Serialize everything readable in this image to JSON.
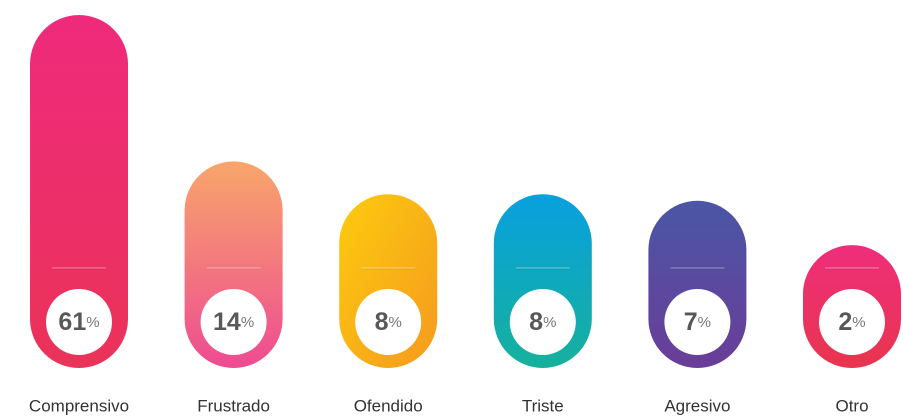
{
  "chart_data": {
    "type": "bar",
    "categories": [
      "Comprensivo",
      "Frustrado",
      "Ofendido",
      "Triste",
      "Agresivo",
      "Otro"
    ],
    "values": [
      61,
      14,
      8,
      8,
      7,
      2
    ],
    "value_labels": [
      "61%",
      "14%",
      "8%",
      "8%",
      "7%",
      "2%"
    ],
    "colors": [
      [
        "#ef2a7c",
        "#ea3358"
      ],
      [
        "#f8a66a",
        "#ee4b92"
      ],
      [
        "#fdcb0e",
        "#f59a1e"
      ],
      [
        "#08a0de",
        "#16b19c"
      ],
      [
        "#4a56a6",
        "#6a3d98"
      ],
      [
        "#ef2e7c",
        "#e8354e"
      ]
    ]
  }
}
